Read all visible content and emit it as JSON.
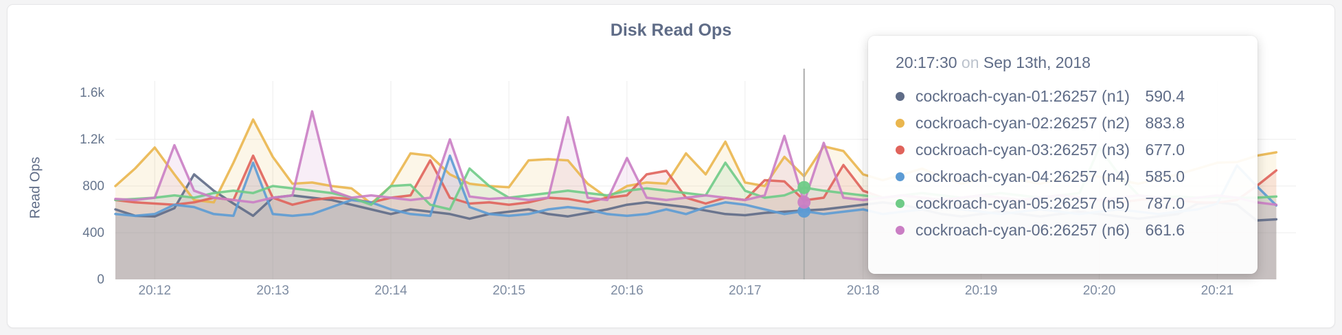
{
  "page": {
    "background": "#F4F4F5",
    "card_background": "#FFFFFF"
  },
  "header": {
    "title": "Disk Read Ops"
  },
  "colors": {
    "text_slate": "#5F6C87",
    "tick_label": "#7E8CA2",
    "grid_line": "#ECECEC",
    "hover_line": "#ABABAB",
    "tooltip_on": "#BCC3CD"
  },
  "tooltip": {
    "time": "20:17:30",
    "conjunction": "on",
    "date": "Sep 13th, 2018",
    "rows": [
      {
        "name": "cockroach-cyan-01:26257 (n1)",
        "value": "590.4",
        "color": "#5F6C87"
      },
      {
        "name": "cockroach-cyan-02:26257 (n2)",
        "value": "883.8",
        "color": "#EAB64E"
      },
      {
        "name": "cockroach-cyan-03:26257 (n3)",
        "value": "677.0",
        "color": "#E0635B"
      },
      {
        "name": "cockroach-cyan-04:26257 (n4)",
        "value": "585.0",
        "color": "#5C9BD4"
      },
      {
        "name": "cockroach-cyan-05:26257 (n5)",
        "value": "787.0",
        "color": "#6FCB87"
      },
      {
        "name": "cockroach-cyan-06:26257 (n6)",
        "value": "661.6",
        "color": "#CA7EC4"
      }
    ]
  },
  "hover": {
    "time": "20:17:30",
    "t_seconds": 350,
    "dot_series": [
      "n4",
      "n5",
      "n6"
    ]
  },
  "chart_data": {
    "type": "line",
    "title": "Disk Read Ops",
    "xlabel": "",
    "ylabel": "Read Ops",
    "ylim": [
      0,
      1600
    ],
    "grid": true,
    "legend_position": "hover-tooltip",
    "fill_under_lines": true,
    "x_axis": {
      "start_time": "20:11:40",
      "interval_seconds": 10,
      "domain_seconds": [
        0,
        600
      ]
    },
    "y_ticks": [
      {
        "label": "0",
        "value": 0
      },
      {
        "label": "400",
        "value": 400
      },
      {
        "label": "800",
        "value": 800
      },
      {
        "label": "1.2k",
        "value": 1200
      },
      {
        "label": "1.6k",
        "value": 1600
      }
    ],
    "x_ticks": [
      {
        "label": "20:12",
        "t": 20
      },
      {
        "label": "20:13",
        "t": 80
      },
      {
        "label": "20:14",
        "t": 140
      },
      {
        "label": "20:15",
        "t": 200
      },
      {
        "label": "20:16",
        "t": 260
      },
      {
        "label": "20:17",
        "t": 320
      },
      {
        "label": "20:18",
        "t": 380
      },
      {
        "label": "20:19",
        "t": 440
      },
      {
        "label": "20:20",
        "t": 500
      },
      {
        "label": "20:21",
        "t": 560
      }
    ],
    "series": [
      {
        "name": "cockroach-cyan-01:26257 (n1)",
        "short": "n1",
        "color": "#5F6C87",
        "values": [
          600,
          545,
          540,
          610,
          900,
          760,
          650,
          545,
          700,
          720,
          700,
          680,
          640,
          600,
          560,
          600,
          580,
          560,
          520,
          560,
          580,
          600,
          560,
          540,
          570,
          600,
          640,
          660,
          640,
          620,
          590,
          560,
          550,
          570,
          580,
          590.4,
          600,
          620,
          640,
          660,
          640,
          600,
          560,
          540,
          560,
          580,
          560,
          540,
          560,
          580,
          560,
          540,
          520,
          540,
          560,
          650,
          660,
          640,
          505,
          515
        ]
      },
      {
        "name": "cockroach-cyan-02:26257 (n2)",
        "short": "n2",
        "color": "#EAB64E",
        "values": [
          800,
          950,
          1130,
          900,
          680,
          660,
          1000,
          1370,
          1050,
          820,
          830,
          800,
          780,
          650,
          800,
          1080,
          1060,
          900,
          820,
          800,
          790,
          1020,
          1030,
          1020,
          820,
          700,
          800,
          830,
          820,
          1080,
          900,
          1180,
          830,
          800,
          1050,
          883.8,
          1140,
          1100,
          900,
          850,
          900,
          950,
          880,
          820,
          860,
          900,
          850,
          820,
          860,
          900,
          880,
          850,
          820,
          860,
          900,
          950,
          1000,
          1006,
          1060,
          1089
        ]
      },
      {
        "name": "cockroach-cyan-03:26257 (n3)",
        "short": "n3",
        "color": "#E0635B",
        "values": [
          680,
          660,
          650,
          640,
          660,
          700,
          680,
          1060,
          700,
          640,
          680,
          700,
          690,
          660,
          700,
          720,
          1020,
          700,
          650,
          660,
          640,
          660,
          700,
          690,
          660,
          700,
          720,
          900,
          930,
          700,
          650,
          700,
          680,
          850,
          840,
          677,
          700,
          980,
          760,
          700,
          720,
          700,
          680,
          700,
          720,
          700,
          680,
          700,
          720,
          700,
          680,
          660,
          680,
          700,
          680,
          660,
          657,
          680,
          800,
          934
        ]
      },
      {
        "name": "cockroach-cyan-04:26257 (n4)",
        "short": "n4",
        "color": "#5C9BD4",
        "values": [
          560,
          545,
          560,
          640,
          620,
          560,
          545,
          1000,
          560,
          545,
          560,
          620,
          680,
          660,
          600,
          560,
          545,
          1060,
          620,
          560,
          545,
          560,
          600,
          620,
          600,
          560,
          545,
          560,
          600,
          560,
          620,
          660,
          640,
          600,
          560,
          585,
          560,
          580,
          600,
          560,
          580,
          600,
          620,
          600,
          580,
          560,
          580,
          600,
          580,
          560,
          580,
          600,
          580,
          560,
          580,
          600,
          650,
          977,
          800,
          634
        ]
      },
      {
        "name": "cockroach-cyan-05:26257 (n5)",
        "short": "n5",
        "color": "#6FCB87",
        "values": [
          680,
          690,
          700,
          720,
          700,
          740,
          760,
          740,
          800,
          780,
          760,
          740,
          700,
          640,
          800,
          810,
          640,
          600,
          950,
          800,
          700,
          720,
          740,
          760,
          740,
          720,
          760,
          780,
          760,
          740,
          720,
          1000,
          760,
          700,
          720,
          787,
          760,
          740,
          720,
          700,
          720,
          740,
          720,
          700,
          720,
          740,
          720,
          700,
          720,
          740,
          1130,
          900,
          720,
          700,
          710,
          700,
          705,
          700,
          700,
          710
        ]
      },
      {
        "name": "cockroach-cyan-06:26257 (n6)",
        "short": "n6",
        "color": "#CA7EC4",
        "values": [
          690,
          680,
          700,
          1150,
          760,
          700,
          680,
          660,
          700,
          720,
          1440,
          760,
          700,
          720,
          700,
          680,
          700,
          1200,
          710,
          690,
          700,
          680,
          700,
          1390,
          700,
          680,
          1040,
          700,
          680,
          700,
          720,
          700,
          680,
          720,
          1230,
          661.6,
          1170,
          700,
          680,
          700,
          720,
          700,
          680,
          700,
          720,
          700,
          680,
          700,
          720,
          700,
          680,
          700,
          720,
          700,
          680,
          700,
          720,
          700,
          660,
          640
        ]
      }
    ]
  }
}
